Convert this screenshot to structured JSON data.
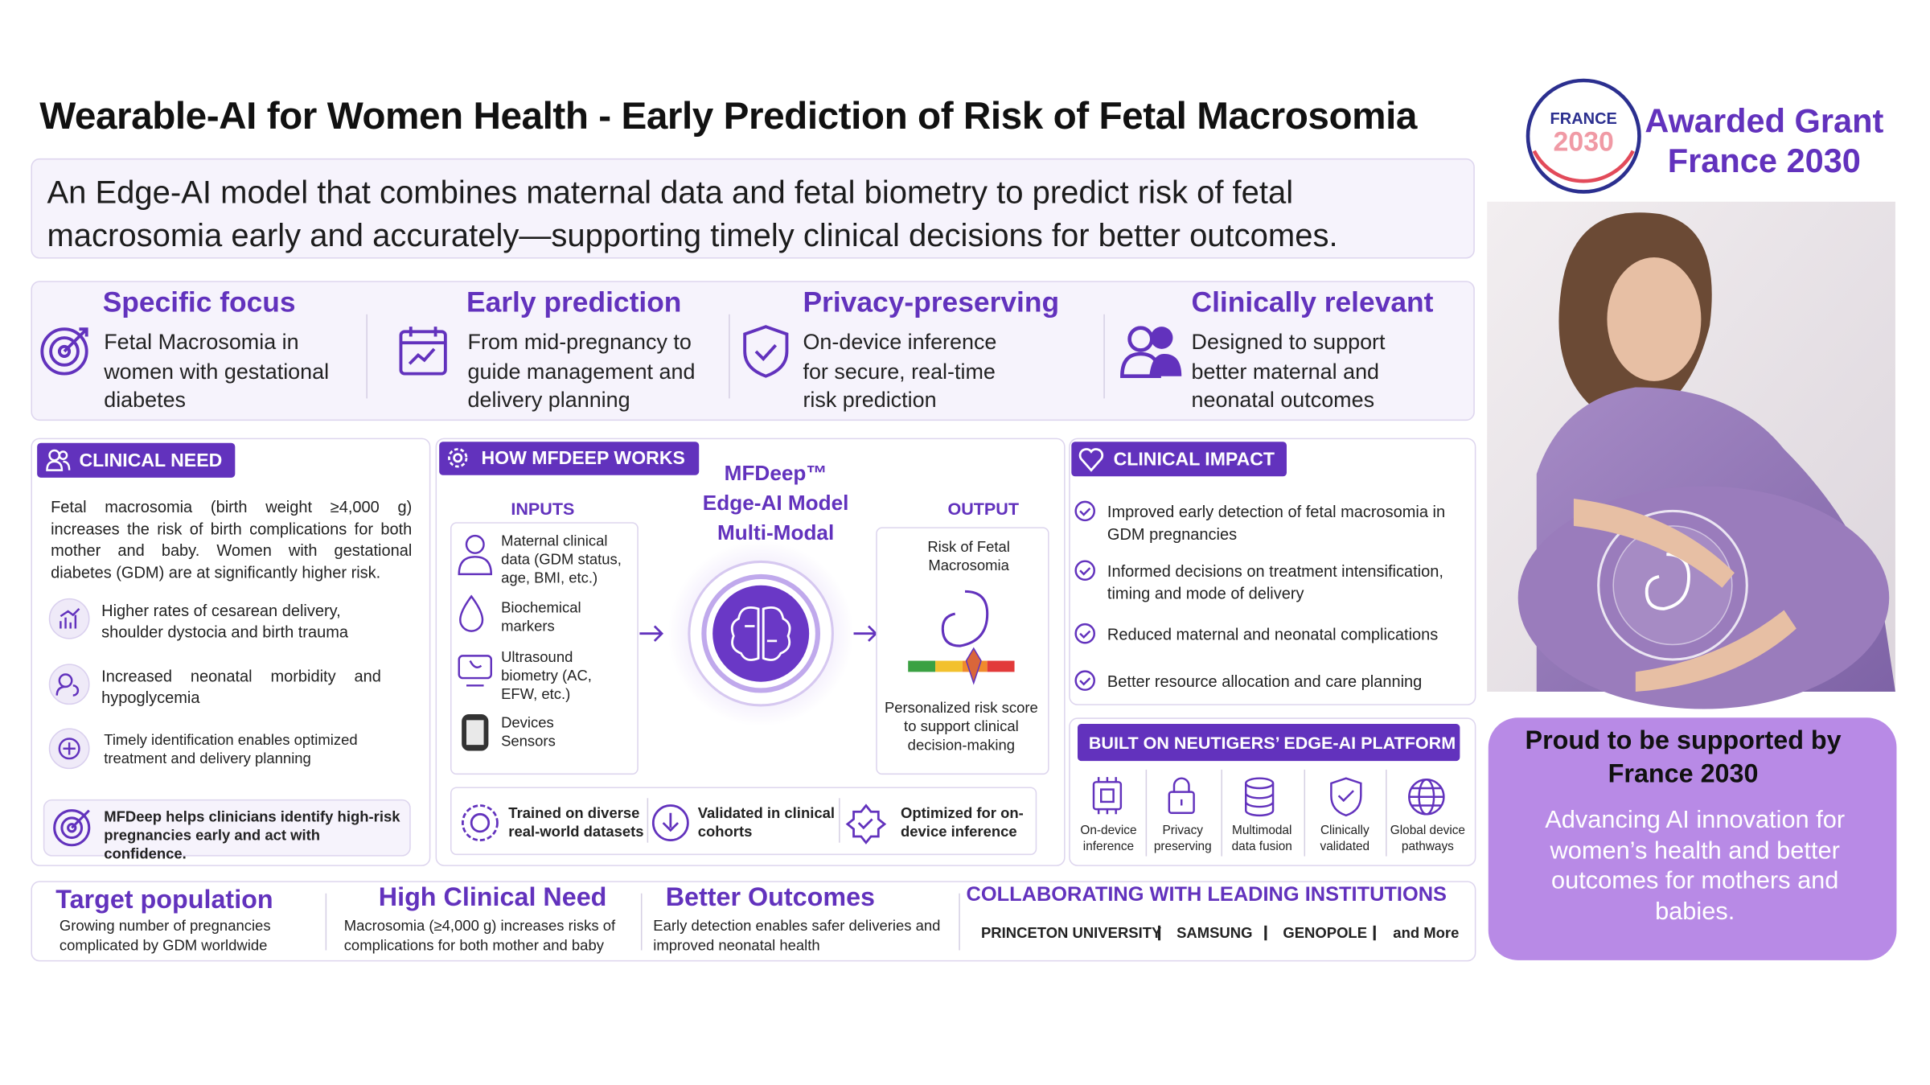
{
  "header": {
    "title": "Wearable-AI for Women Health - Early Prediction of Risk of Fetal Macrosomia",
    "subtitle": "An Edge-AI model that combines maternal data and fetal biometry to predict risk of fetal macrosomia early and accurately—supporting timely clinical decisions for better outcomes."
  },
  "award": {
    "badge_top": "FRANCE",
    "badge_year": "2030",
    "title_lines": [
      "Awarded Grant",
      "France 2030"
    ]
  },
  "features": [
    {
      "title": "Specific focus",
      "text": "Fetal Macrosomia in women with gestational diabetes"
    },
    {
      "title": "Early prediction",
      "text": "From mid-pregnancy to guide management and delivery planning"
    },
    {
      "title": "Privacy-preserving",
      "text": "On-device inference for secure, real-time risk prediction"
    },
    {
      "title": "Clinically relevant",
      "text": "Designed to support better maternal and neonatal outcomes"
    }
  ],
  "clinical_need": {
    "heading": "CLINICAL NEED",
    "intro": "Fetal macrosomia (birth weight ≥4,000 g) increases the risk of birth complications for both mother and baby. Women with gestational diabetes (GDM) are at significantly higher risk.",
    "items": [
      "Higher rates of cesarean delivery, shoulder dystocia and birth trauma",
      "Increased neonatal morbidity and hypoglycemia",
      "Timely identification enables optimized treatment and delivery planning"
    ],
    "callout": "MFDeep helps clinicians identify high-risk pregnancies early and act with confidence."
  },
  "how": {
    "heading": "HOW MFDEEP WORKS",
    "inputs_label": "INPUTS",
    "inputs": [
      "Maternal clinical data (GDM status, age, BMI, etc.)",
      "Biochemical markers",
      "Ultrasound biometry (AC, EFW, etc.)",
      "Devices Sensors"
    ],
    "model_lines": [
      "MFDeep™",
      "Edge-AI Model",
      "Multi-Modal"
    ],
    "output_label": "OUTPUT",
    "output_top": "Risk of Fetal Macrosomia",
    "output_bottom": "Personalized risk score to support clinical decision-making",
    "badges": [
      "Trained on diverse real-world datasets",
      "Validated in clinical cohorts",
      "Optimized for on-device inference"
    ]
  },
  "impact": {
    "heading": "CLINICAL IMPACT",
    "items": [
      "Improved early detection of fetal macrosomia in GDM pregnancies",
      "Informed decisions on treatment intensification, timing and mode of delivery",
      "Reduced maternal and neonatal complications",
      "Better resource allocation and care planning"
    ]
  },
  "platform": {
    "heading": "BUILT ON NEUTIGERS’ EDGE-AI PLATFORM",
    "items": [
      "On-device inference",
      "Privacy preserving",
      "Multimodal data fusion",
      "Clinically validated",
      "Global device pathways"
    ]
  },
  "footer": {
    "stats": [
      {
        "title": "Target population",
        "text": "Growing number of pregnancies complicated by GDM worldwide"
      },
      {
        "title": "High Clinical Need",
        "text": "Macrosomia (≥4,000 g) increases risks of complications for both mother and baby"
      },
      {
        "title": "Better Outcomes",
        "text": "Early detection enables safer deliveries and improved neonatal health"
      }
    ],
    "collab_heading": "COLLABORATING WITH LEADING INSTITUTIONS",
    "institutions": [
      "PRINCETON UNIVERSITY",
      "SAMSUNG",
      "GENOPOLE",
      "and More"
    ]
  },
  "support": {
    "title": "Proud to be supported by France 2030",
    "text": "Advancing AI innovation for women’s health and better outcomes for mothers and babies."
  }
}
